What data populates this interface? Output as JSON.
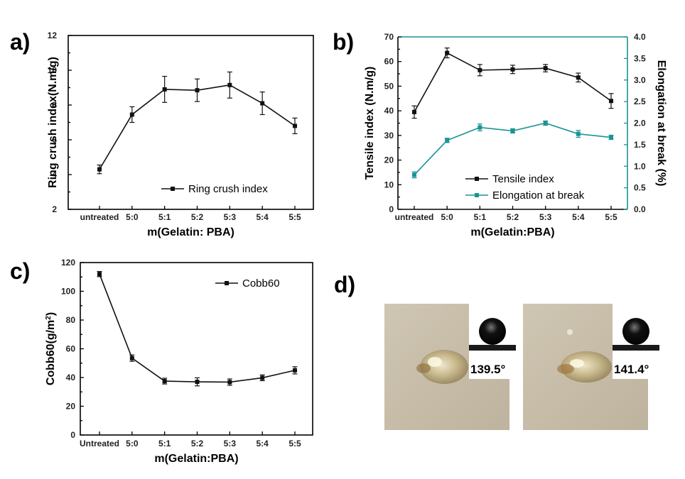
{
  "panels": {
    "a": "a)",
    "b": "b)",
    "c": "c)",
    "d": "d)"
  },
  "colors": {
    "black": "#111111",
    "teal": "#1a9494",
    "paper": "#c9c0ad"
  },
  "chart_data": [
    {
      "id": "a",
      "type": "line",
      "categories": [
        "untreated",
        "5:0",
        "5:1",
        "5:2",
        "5:3",
        "5:4",
        "5:5"
      ],
      "series": [
        {
          "name": "Ring crush index",
          "values": [
            4.3,
            7.45,
            8.9,
            8.85,
            9.15,
            8.1,
            6.8
          ],
          "errors": [
            0.25,
            0.45,
            0.75,
            0.65,
            0.75,
            0.65,
            0.45
          ]
        }
      ],
      "xlabel": "m(Gelatin: PBA)",
      "ylabel": "Ring crush index(N.m/g)",
      "ylim": [
        2,
        12
      ],
      "yticks": [
        2,
        4,
        6,
        8,
        10,
        12
      ],
      "legend_position": "bottom-right"
    },
    {
      "id": "b",
      "type": "line",
      "categories": [
        "untreated",
        "5:0",
        "5:1",
        "5:2",
        "5:3",
        "5:4",
        "5:5"
      ],
      "series": [
        {
          "name": "Tensile index",
          "axis": "left",
          "values": [
            39.5,
            63.5,
            56.5,
            56.8,
            57.3,
            53.5,
            44.0
          ],
          "errors": [
            2.5,
            2.0,
            2.3,
            1.7,
            1.5,
            1.8,
            3.0
          ]
        },
        {
          "name": "Elongation at break",
          "axis": "right",
          "values": [
            0.8,
            1.6,
            1.9,
            1.82,
            2.0,
            1.75,
            1.67
          ],
          "errors": [
            0.07,
            0.05,
            0.08,
            0.05,
            0.05,
            0.08,
            0.05
          ]
        }
      ],
      "xlabel": "m(Gelatin:PBA)",
      "ylabel": "Tensile index (N.m/g)",
      "y2label": "Elongation at break (%)",
      "ylim": [
        0,
        70
      ],
      "yticks": [
        0,
        10,
        20,
        30,
        40,
        50,
        60,
        70
      ],
      "y2lim": [
        0.0,
        4.0
      ],
      "y2ticks": [
        "0.0",
        "0.5",
        "1.0",
        "1.5",
        "2.0",
        "2.5",
        "3.0",
        "3.5",
        "4.0"
      ],
      "legend_position": "bottom-right"
    },
    {
      "id": "c",
      "type": "line",
      "categories": [
        "Untreated",
        "5:0",
        "5:1",
        "5:2",
        "5:3",
        "5:4",
        "5:5"
      ],
      "series": [
        {
          "name": "Cobb60",
          "values": [
            112,
            53.5,
            37.5,
            37.0,
            36.8,
            39.8,
            45.0
          ],
          "errors": [
            1.8,
            2.2,
            2.0,
            2.8,
            2.2,
            2.0,
            2.5
          ]
        }
      ],
      "xlabel": "m(Gelatin:PBA)",
      "ylabel": "Cobb60(g/m",
      "ylabel_sup": "2",
      "ylabel_end": ")",
      "ylim": [
        0,
        120
      ],
      "yticks": [
        0,
        20,
        40,
        60,
        80,
        100,
        120
      ],
      "legend_position": "top-right"
    }
  ],
  "photos": [
    {
      "label": "139.5°",
      "angle": 139.5
    },
    {
      "label": "141.4°",
      "angle": 141.4
    }
  ]
}
